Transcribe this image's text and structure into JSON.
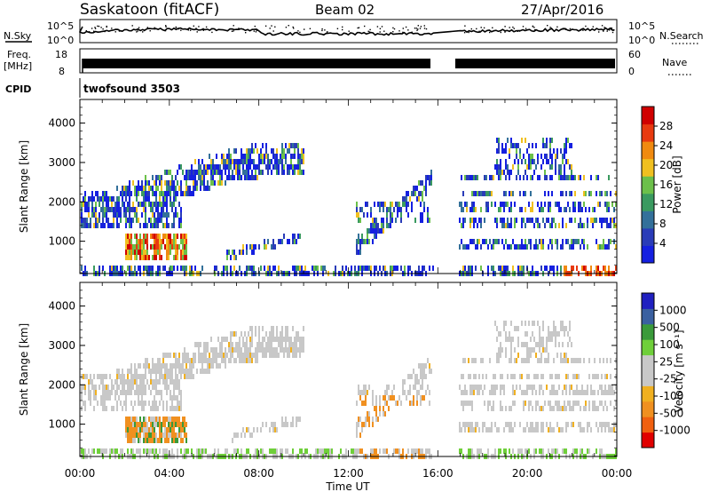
{
  "header": {
    "station": "Saskatoon (fitACF)",
    "beam": "Beam 02",
    "date": "27/Apr/2016"
  },
  "panels": {
    "nsky_label": "N.Sky",
    "nsky_ticks": [
      "10^5",
      "10^0"
    ],
    "nsearch_label": "N.Search",
    "nsearch_ticks": [
      "10^5",
      "10^0"
    ],
    "freq_label": "Freq.",
    "freq_unit": "[MHz]",
    "freq_ticks": [
      "18",
      "8"
    ],
    "nave_label": "Nave",
    "nave_ticks": [
      "60",
      "0"
    ],
    "cpid_label": "CPID",
    "cpid_value": "twofsound 3503"
  },
  "colors": {
    "power": [
      "#1520e0",
      "#2a3cb8",
      "#33709a",
      "#3a9a60",
      "#6cc04a",
      "#f0c020",
      "#f08a10",
      "#e83a10",
      "#d00000"
    ],
    "velocity": [
      "#e00000",
      "#f06010",
      "#f09020",
      "#f0b020",
      "#c8c8c8",
      "#c8c8c8",
      "#6fcf3a",
      "#3a9a3a",
      "#3a60a0",
      "#2020c0"
    ]
  },
  "chart_data": [
    {
      "type": "heatmap",
      "name_hidden": "power",
      "ylabel": "Slant Range [km]",
      "y_ticks": [
        "1000",
        "2000",
        "3000",
        "4000"
      ],
      "ylim": [
        180,
        4600
      ],
      "x_ticks": [
        "00:00",
        "04:00",
        "08:00",
        "12:00",
        "16:00",
        "20:00",
        "00:00"
      ],
      "xlim_hours": [
        0,
        24
      ],
      "colorbar_label": "Power [dB]",
      "colorbar_ticks": [
        "4",
        "8",
        "12",
        "16",
        "20",
        "24",
        "28"
      ],
      "data_gap_hours": [
        15.8,
        16.9
      ]
    },
    {
      "type": "heatmap",
      "name_hidden": "velocity",
      "ylabel": "Slant Range [km]",
      "y_ticks": [
        "1000",
        "2000",
        "3000",
        "4000"
      ],
      "ylim": [
        180,
        4600
      ],
      "x_ticks": [
        "00:00",
        "04:00",
        "08:00",
        "12:00",
        "16:00",
        "20:00",
        "00:00"
      ],
      "xlim_hours": [
        0,
        24
      ],
      "xlabel": "Time UT",
      "colorbar_label": "Velocity [m s⁻¹]",
      "colorbar_ticks": [
        "1000",
        "500",
        "100",
        "25",
        "-25",
        "-100",
        "-500",
        "-1000"
      ],
      "data_gap_hours": [
        15.8,
        16.9
      ]
    }
  ]
}
